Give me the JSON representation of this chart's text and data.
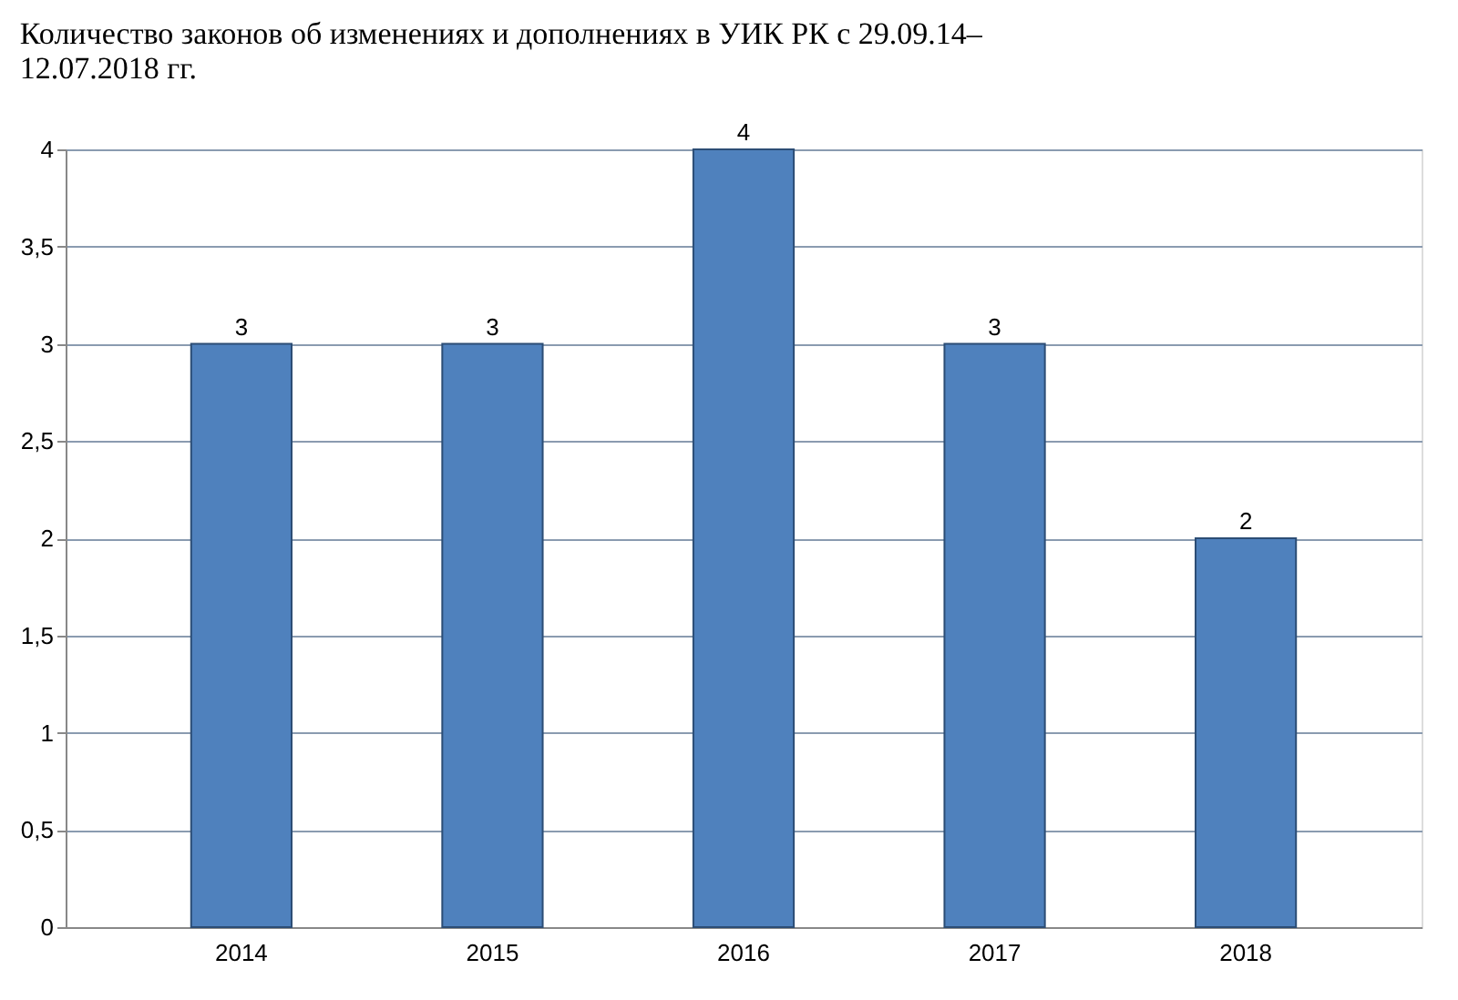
{
  "chart_data": {
    "type": "bar",
    "title": "Количество законов об изменениях и дополнениях в УИК РК с 29.09.14–\n12.07.2018 гг.",
    "categories": [
      "2014",
      "2015",
      "2016",
      "2017",
      "2018"
    ],
    "values": [
      3,
      3,
      4,
      3,
      2
    ],
    "color": "#4f81bd",
    "ylim": [
      0,
      4
    ],
    "yticks": [
      0,
      {
        "value": 0.5,
        "label": "0,5"
      },
      1,
      {
        "value": 1.5,
        "label": "1,5"
      },
      2,
      {
        "value": 2.5,
        "label": "2,5"
      },
      3,
      {
        "value": 3.5,
        "label": "3,5"
      },
      4
    ],
    "grid": "y",
    "data_labels": true
  }
}
